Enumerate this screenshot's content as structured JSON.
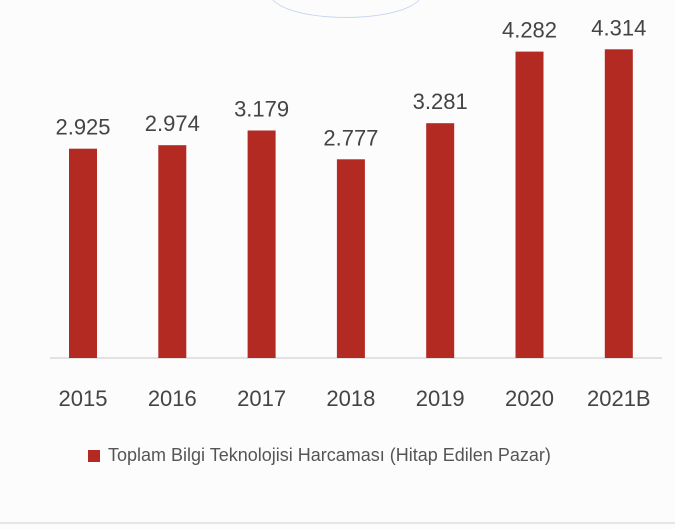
{
  "chart_data": {
    "type": "bar",
    "categories": [
      "2015",
      "2016",
      "2017",
      "2018",
      "2019",
      "2020",
      "2021B"
    ],
    "values": [
      2.925,
      2.974,
      3.179,
      2.777,
      3.281,
      4.282,
      4.314
    ],
    "data_labels": [
      "2.925",
      "2.974",
      "3.179",
      "2.777",
      "3.281",
      "4.282",
      "4.314"
    ],
    "series": [
      {
        "name": "Toplam Bilgi Teknolojisi Harcaması (Hitap Edilen Pazar)",
        "values": [
          2.925,
          2.974,
          3.179,
          2.777,
          3.281,
          4.282,
          4.314
        ]
      }
    ],
    "ylim": [
      0,
      4.5
    ],
    "grid": false,
    "legend_position": "bottom",
    "colors": {
      "bar": "#b22a22",
      "label": "#444444",
      "axis": "#d9d9d9"
    }
  }
}
